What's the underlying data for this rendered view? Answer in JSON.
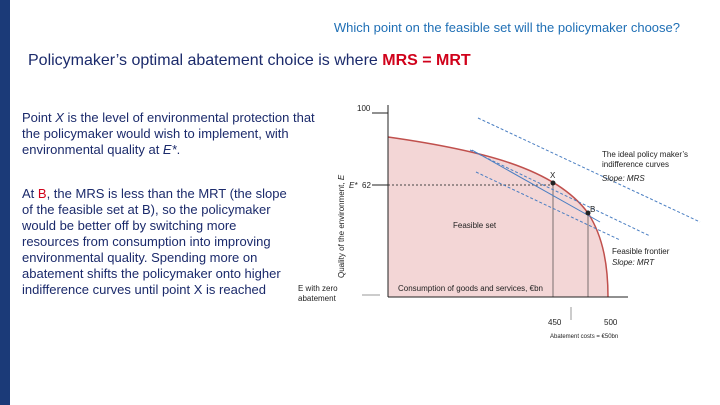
{
  "header": {
    "question": "Which point on the feasible set will the policymaker choose?",
    "title_prefix": "Policymaker’s optimal abatement choice is where ",
    "title_highlight": "MRS = MRT"
  },
  "body": {
    "paragraph1": [
      "Point ",
      "X",
      " is the level of environmental protection that the policymaker would wish to implement, with environmental quality at ",
      "E*",
      "."
    ],
    "paragraph2": [
      "At ",
      "B",
      ", the MRS is less than the MRT (the slope of the feasible set at B), so the policymaker would be better off by switching more resources from consumption into improving environmental quality. Spending more on abatement shifts the policymaker onto higher indifference curves until point X is reached"
    ]
  },
  "diagram": {
    "y_axis_label": [
      "Quality of the environment, ",
      "E"
    ],
    "y_ticks": {
      "top": "100",
      "estar_symbol": "E*",
      "estar_value": "62"
    },
    "x_ticks": {
      "left": "450",
      "right": "500"
    },
    "zero_abatement_label": "E with zero abatement",
    "abatement_note": "Abatement costs = €50bn",
    "feasible_set": "Feasible set",
    "x_axis_label": "Consumption of goods and services, €bn",
    "point_x": "X",
    "point_b": "B",
    "indifference_title": "The ideal policy maker’s indifference curves",
    "indifference_slope": "Slope: MRS",
    "frontier_title": "Feasible frontier",
    "frontier_slope": "Slope: MRT"
  }
}
